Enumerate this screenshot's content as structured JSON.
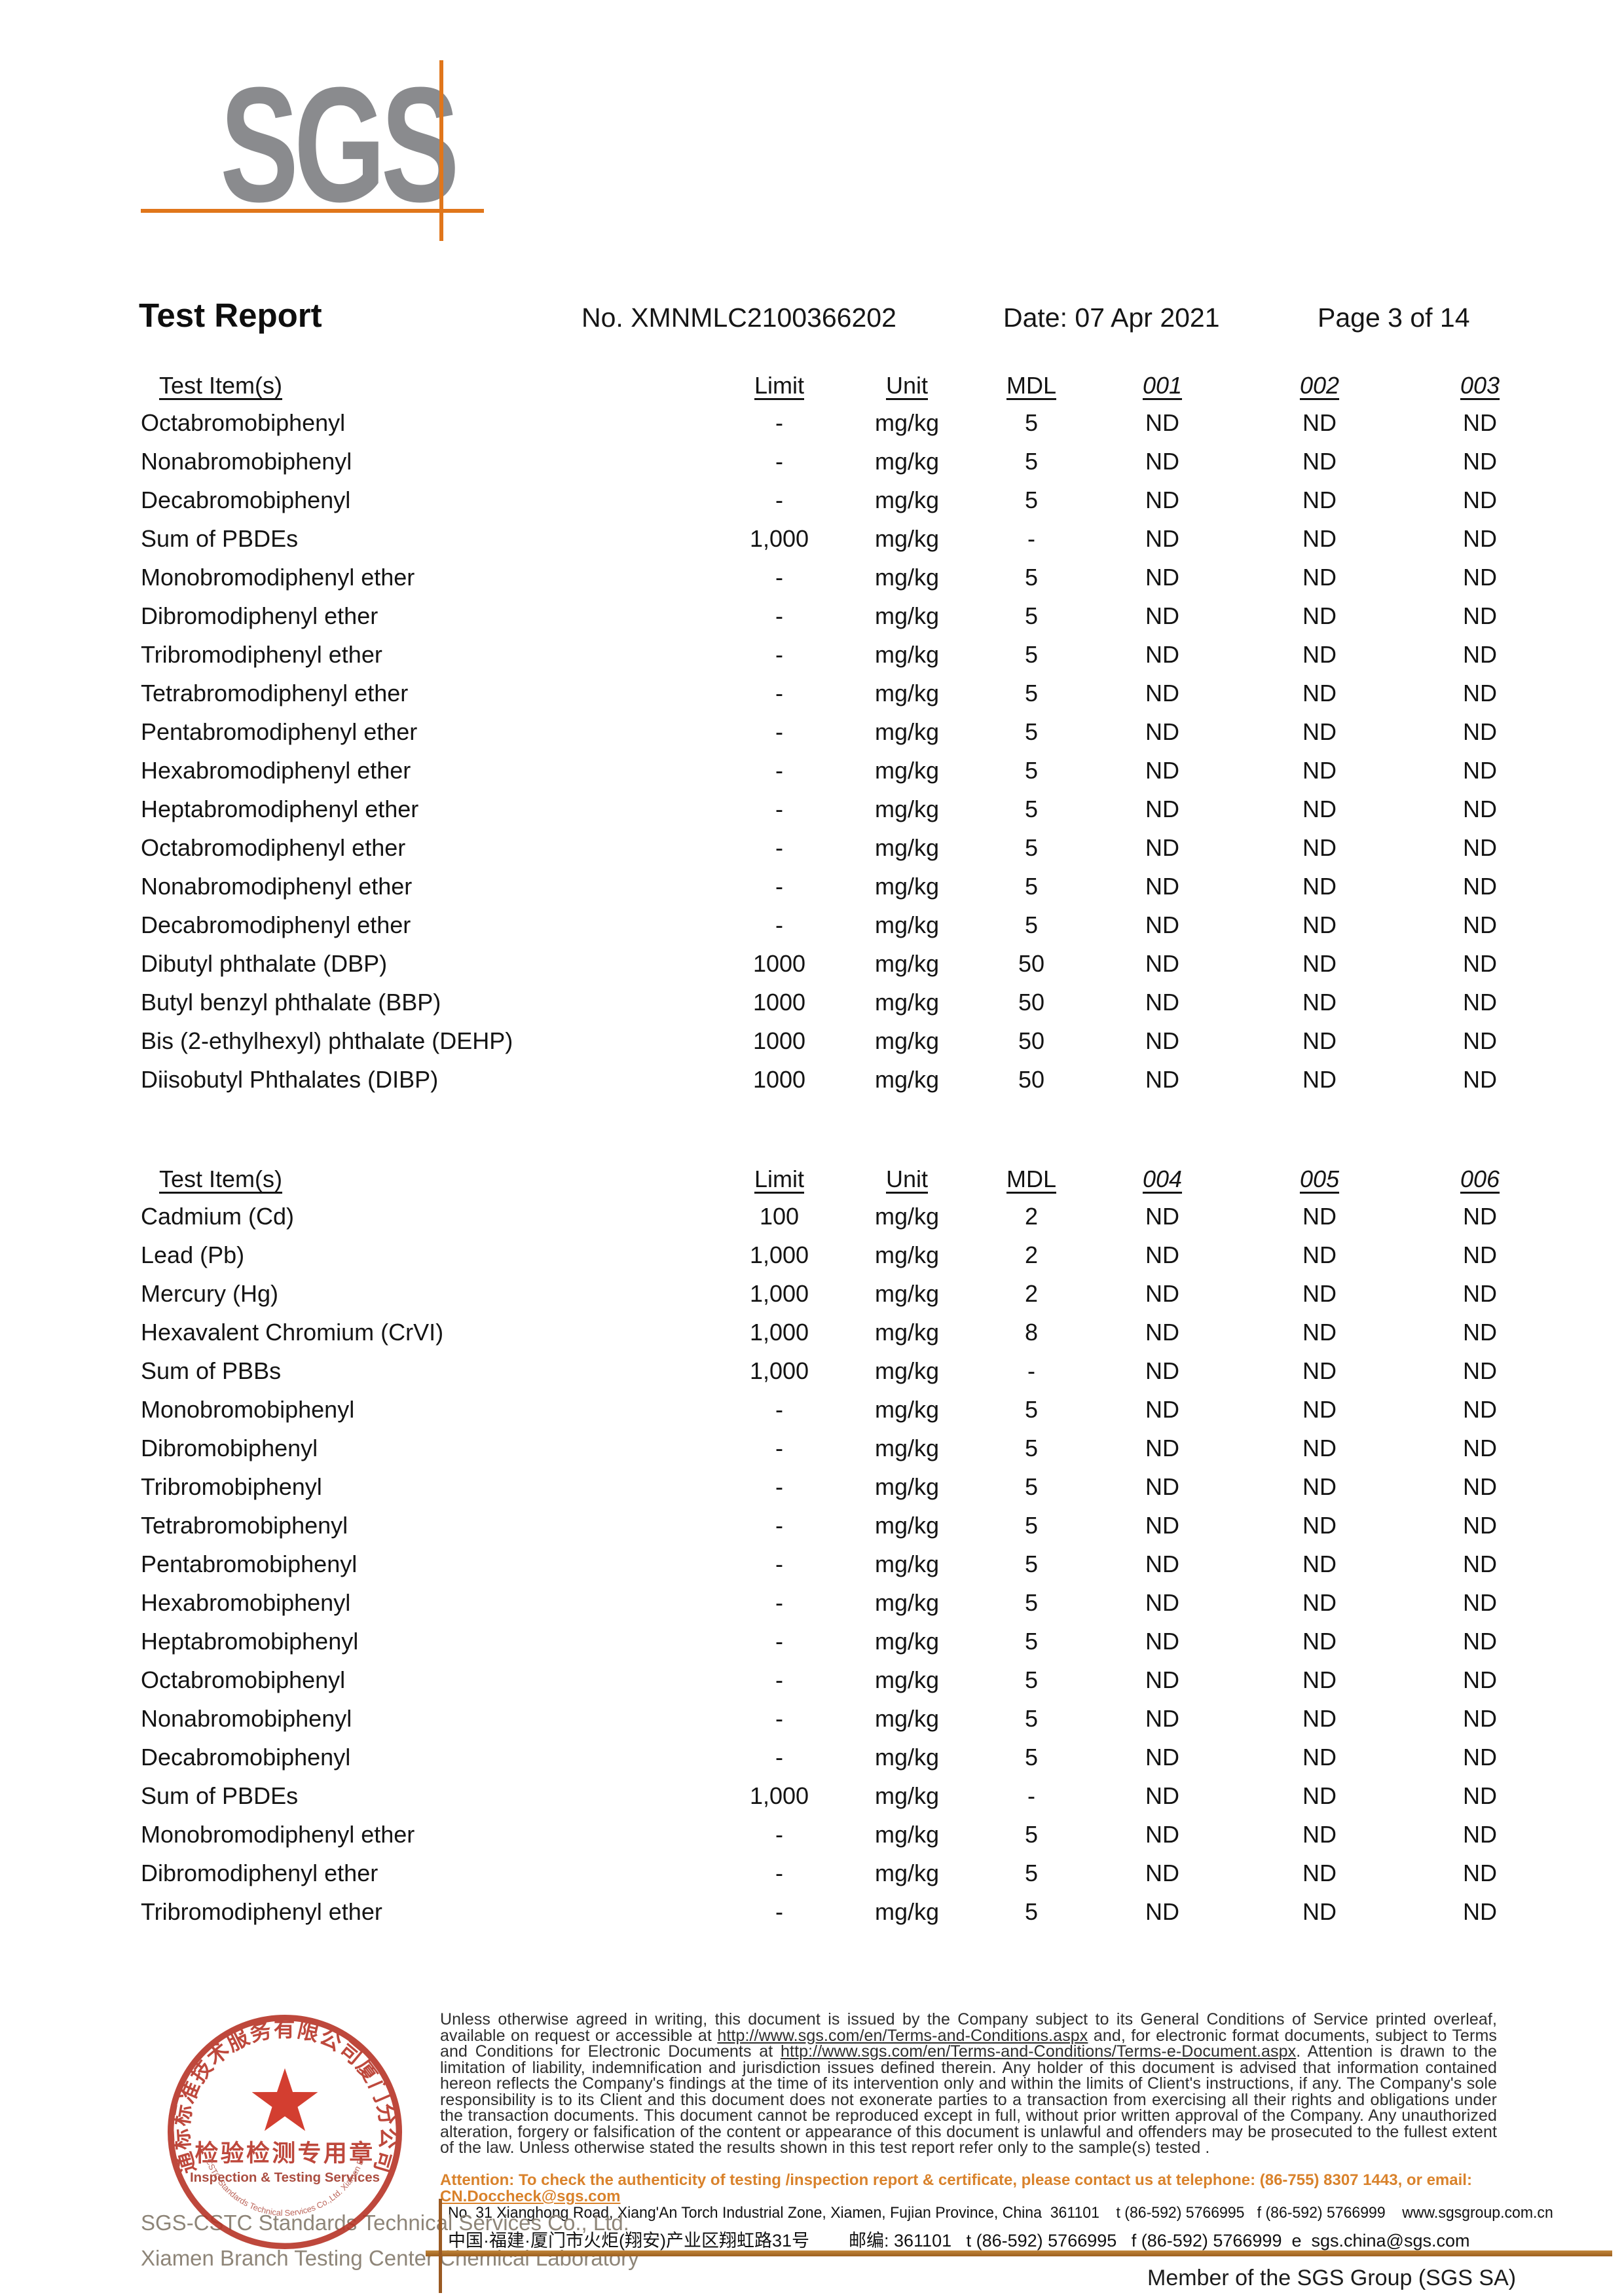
{
  "page": {
    "logo_text": "SGS",
    "title": "Test Report",
    "report_no": "No. XMNMLC2100366202",
    "date": "Date: 07 Apr 2021",
    "page_label": "Page 3 of 14"
  },
  "colors": {
    "logo_gray": "#8a8b8e",
    "accent_orange": "#e0761b",
    "seal_red": "#b73527",
    "attention_orange": "#d9822b",
    "divider_brown": "#9d5f1e"
  },
  "tables": [
    {
      "headers": {
        "item": "Test Item(s)",
        "limit": "Limit",
        "unit": "Unit",
        "mdl": "MDL",
        "samples": [
          "001",
          "002",
          "003"
        ]
      },
      "rows": [
        [
          "Octabromobiphenyl",
          "-",
          "mg/kg",
          "5",
          "ND",
          "ND",
          "ND"
        ],
        [
          "Nonabromobiphenyl",
          "-",
          "mg/kg",
          "5",
          "ND",
          "ND",
          "ND"
        ],
        [
          "Decabromobiphenyl",
          "-",
          "mg/kg",
          "5",
          "ND",
          "ND",
          "ND"
        ],
        [
          "Sum of PBDEs",
          "1,000",
          "mg/kg",
          "-",
          "ND",
          "ND",
          "ND"
        ],
        [
          "Monobromodiphenyl ether",
          "-",
          "mg/kg",
          "5",
          "ND",
          "ND",
          "ND"
        ],
        [
          "Dibromodiphenyl ether",
          "-",
          "mg/kg",
          "5",
          "ND",
          "ND",
          "ND"
        ],
        [
          "Tribromodiphenyl ether",
          "-",
          "mg/kg",
          "5",
          "ND",
          "ND",
          "ND"
        ],
        [
          "Tetrabromodiphenyl ether",
          "-",
          "mg/kg",
          "5",
          "ND",
          "ND",
          "ND"
        ],
        [
          "Pentabromodiphenyl ether",
          "-",
          "mg/kg",
          "5",
          "ND",
          "ND",
          "ND"
        ],
        [
          "Hexabromodiphenyl ether",
          "-",
          "mg/kg",
          "5",
          "ND",
          "ND",
          "ND"
        ],
        [
          "Heptabromodiphenyl ether",
          "-",
          "mg/kg",
          "5",
          "ND",
          "ND",
          "ND"
        ],
        [
          "Octabromodiphenyl ether",
          "-",
          "mg/kg",
          "5",
          "ND",
          "ND",
          "ND"
        ],
        [
          "Nonabromodiphenyl ether",
          "-",
          "mg/kg",
          "5",
          "ND",
          "ND",
          "ND"
        ],
        [
          "Decabromodiphenyl ether",
          "-",
          "mg/kg",
          "5",
          "ND",
          "ND",
          "ND"
        ],
        [
          "Dibutyl phthalate (DBP)",
          "1000",
          "mg/kg",
          "50",
          "ND",
          "ND",
          "ND"
        ],
        [
          "Butyl benzyl phthalate (BBP)",
          "1000",
          "mg/kg",
          "50",
          "ND",
          "ND",
          "ND"
        ],
        [
          "Bis (2-ethylhexyl) phthalate (DEHP)",
          "1000",
          "mg/kg",
          "50",
          "ND",
          "ND",
          "ND"
        ],
        [
          "Diisobutyl Phthalates (DIBP)",
          "1000",
          "mg/kg",
          "50",
          "ND",
          "ND",
          "ND"
        ]
      ]
    },
    {
      "headers": {
        "item": "Test Item(s)",
        "limit": "Limit",
        "unit": "Unit",
        "mdl": "MDL",
        "samples": [
          "004",
          "005",
          "006"
        ]
      },
      "rows": [
        [
          "Cadmium (Cd)",
          "100",
          "mg/kg",
          "2",
          "ND",
          "ND",
          "ND"
        ],
        [
          "Lead (Pb)",
          "1,000",
          "mg/kg",
          "2",
          "ND",
          "ND",
          "ND"
        ],
        [
          "Mercury (Hg)",
          "1,000",
          "mg/kg",
          "2",
          "ND",
          "ND",
          "ND"
        ],
        [
          "Hexavalent Chromium (CrVI)",
          "1,000",
          "mg/kg",
          "8",
          "ND",
          "ND",
          "ND"
        ],
        [
          "Sum of PBBs",
          "1,000",
          "mg/kg",
          "-",
          "ND",
          "ND",
          "ND"
        ],
        [
          "Monobromobiphenyl",
          "-",
          "mg/kg",
          "5",
          "ND",
          "ND",
          "ND"
        ],
        [
          "Dibromobiphenyl",
          "-",
          "mg/kg",
          "5",
          "ND",
          "ND",
          "ND"
        ],
        [
          "Tribromobiphenyl",
          "-",
          "mg/kg",
          "5",
          "ND",
          "ND",
          "ND"
        ],
        [
          "Tetrabromobiphenyl",
          "-",
          "mg/kg",
          "5",
          "ND",
          "ND",
          "ND"
        ],
        [
          "Pentabromobiphenyl",
          "-",
          "mg/kg",
          "5",
          "ND",
          "ND",
          "ND"
        ],
        [
          "Hexabromobiphenyl",
          "-",
          "mg/kg",
          "5",
          "ND",
          "ND",
          "ND"
        ],
        [
          "Heptabromobiphenyl",
          "-",
          "mg/kg",
          "5",
          "ND",
          "ND",
          "ND"
        ],
        [
          "Octabromobiphenyl",
          "-",
          "mg/kg",
          "5",
          "ND",
          "ND",
          "ND"
        ],
        [
          "Nonabromobiphenyl",
          "-",
          "mg/kg",
          "5",
          "ND",
          "ND",
          "ND"
        ],
        [
          "Decabromobiphenyl",
          "-",
          "mg/kg",
          "5",
          "ND",
          "ND",
          "ND"
        ],
        [
          "Sum of PBDEs",
          "1,000",
          "mg/kg",
          "-",
          "ND",
          "ND",
          "ND"
        ],
        [
          "Monobromodiphenyl ether",
          "-",
          "mg/kg",
          "5",
          "ND",
          "ND",
          "ND"
        ],
        [
          "Dibromodiphenyl ether",
          "-",
          "mg/kg",
          "5",
          "ND",
          "ND",
          "ND"
        ],
        [
          "Tribromodiphenyl ether",
          "-",
          "mg/kg",
          "5",
          "ND",
          "ND",
          "ND"
        ]
      ]
    }
  ],
  "footer": {
    "legal_segments": [
      {
        "t": "Unless otherwise agreed in writing, this document is issued by the Company subject to its General Conditions of Service printed overleaf, available on request or accessible at ",
        "u": false
      },
      {
        "t": "http://www.sgs.com/en/Terms-and-Conditions.aspx",
        "u": true
      },
      {
        "t": " and, for electronic format documents, subject to Terms and Conditions for Electronic Documents at ",
        "u": false
      },
      {
        "t": "http://www.sgs.com/en/Terms-and-Conditions/Terms-e-Document.aspx",
        "u": true
      },
      {
        "t": ". Attention is drawn to the limitation of liability, indemnification and jurisdiction issues defined therein. Any holder of this document is advised that information contained hereon reflects the Company's findings at the time of its intervention only and within the limits of Client's instructions, if any. The Company's sole responsibility is to its Client and this document does not exonerate parties to a transaction from exercising all their rights and obligations under the transaction documents. This document cannot be reproduced except in full, without prior written approval of the Company. Any unauthorized alteration, forgery or falsification of the content or appearance of this document is unlawful and offenders may be prosecuted to the fullest extent of the law. Unless otherwise stated the results shown in this test report refer only to the sample(s) tested .",
        "u": false
      }
    ],
    "attention_segments": [
      {
        "t": "Attention: To check the authenticity of testing /inspection report & certificate, please contact us at telephone: (86-755) 8307 1443, or email: ",
        "u": false
      },
      {
        "t": "CN.Doccheck@sgs.com",
        "u": true
      }
    ],
    "address_en": "No. 31 Xianghong Road, Xiang'An Torch Industrial Zone, Xiamen, Fujian Province, China  361101    t (86-592) 5766995   f (86-592) 5766999    www.sgsgroup.com.cn",
    "address_cn": "中国·福建·厦门市火炬(翔安)产业区翔虹路31号        邮编: 361101   t (86-592) 5766995   f (86-592) 5766999  e  sgs.china@sgs.com",
    "company_lines": [
      "SGS-CSTC Standards Technical Services Co., Ltd.",
      "Xiamen Branch Testing Center Chemical Laboratory"
    ],
    "stamp": {
      "arc_top": "通标标准技术服务有限公司厦门分公司",
      "line_cn": "检验检测专用章",
      "line_en": "Inspection & Testing Services",
      "arc_bottom": "SGS-CSTC Standards Technical Services Co.,Ltd. Xiamen Branch"
    },
    "member_line": "Member of the SGS Group (SGS SA)"
  }
}
